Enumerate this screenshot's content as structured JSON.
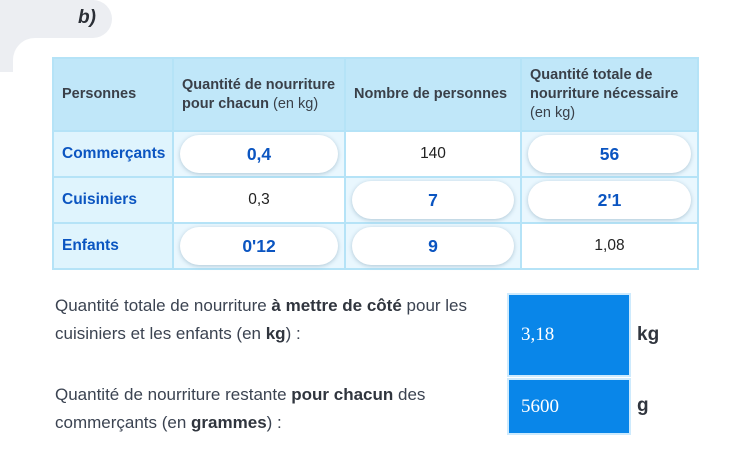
{
  "section_label": "b)",
  "colors": {
    "accent_text_blue": "#0b55c1",
    "answer_fill_blue": "#0986e9",
    "table_header_bg": "#c0e7f9",
    "table_border": "#b5e3f7",
    "label_cell_bg": "#dff4fd",
    "pill_cell_bg": "#e9f7fe"
  },
  "table": {
    "headers": [
      {
        "label": "Personnes",
        "unit": ""
      },
      {
        "label": "Quantité de nourriture pour chacun",
        "unit": " (en kg)"
      },
      {
        "label": "Nombre de personnes",
        "unit": ""
      },
      {
        "label": "Quantité totale de nourriture nécessaire",
        "unit": " (en kg)"
      }
    ],
    "rows": [
      {
        "label": "Commerçants",
        "qty": "0,4",
        "people": "140",
        "total": "56"
      },
      {
        "label": "Cuisiniers",
        "qty": "0,3",
        "people": "7",
        "total": "2'1"
      },
      {
        "label": "Enfants",
        "qty": "0'12",
        "people": "9",
        "total": "1,08"
      }
    ]
  },
  "questions": [
    {
      "t1": "Quantité totale de nourriture ",
      "b1": "à mettre de côté",
      "t2": " pour les cuisiniers et les enfants (en ",
      "b2": "kg",
      "t3": ") :",
      "answer": "3,18",
      "unit": "kg"
    },
    {
      "t1": "Quantité de nourriture restante ",
      "b1": "pour chacun",
      "t2": " des commerçants (en ",
      "b2": "grammes",
      "t3": ") :",
      "answer": "5600",
      "unit": "g"
    }
  ]
}
